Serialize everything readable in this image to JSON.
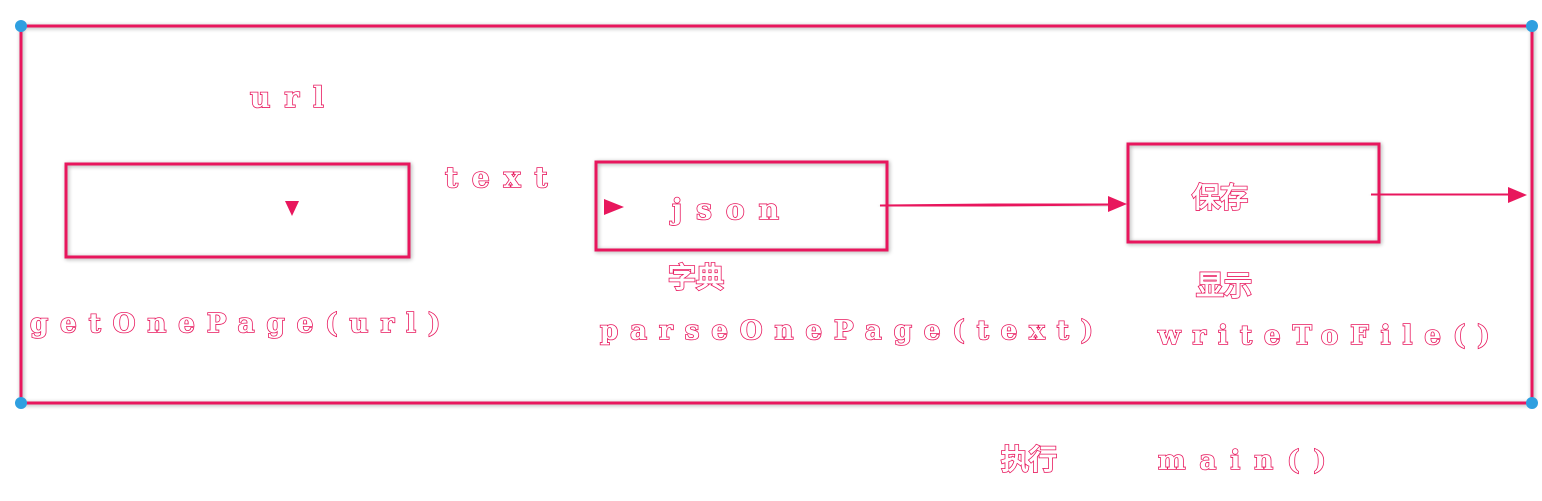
{
  "input_label": "url",
  "edge_label_text": "text",
  "nodes": {
    "get_page": {
      "function_label": "getOnePage(url)"
    },
    "parse_page": {
      "inner_label": "json",
      "sub_label": "字典",
      "function_label": "parseOnePage(text)"
    },
    "write_file": {
      "inner_label": "保存",
      "sub_label": "显示",
      "function_label": "writeToFile()"
    }
  },
  "footer": {
    "caption": "执行",
    "entry_function": "main()"
  },
  "colors": {
    "accent": "#e8175d",
    "handle": "#2e9fe0",
    "background": "#ffffff"
  }
}
